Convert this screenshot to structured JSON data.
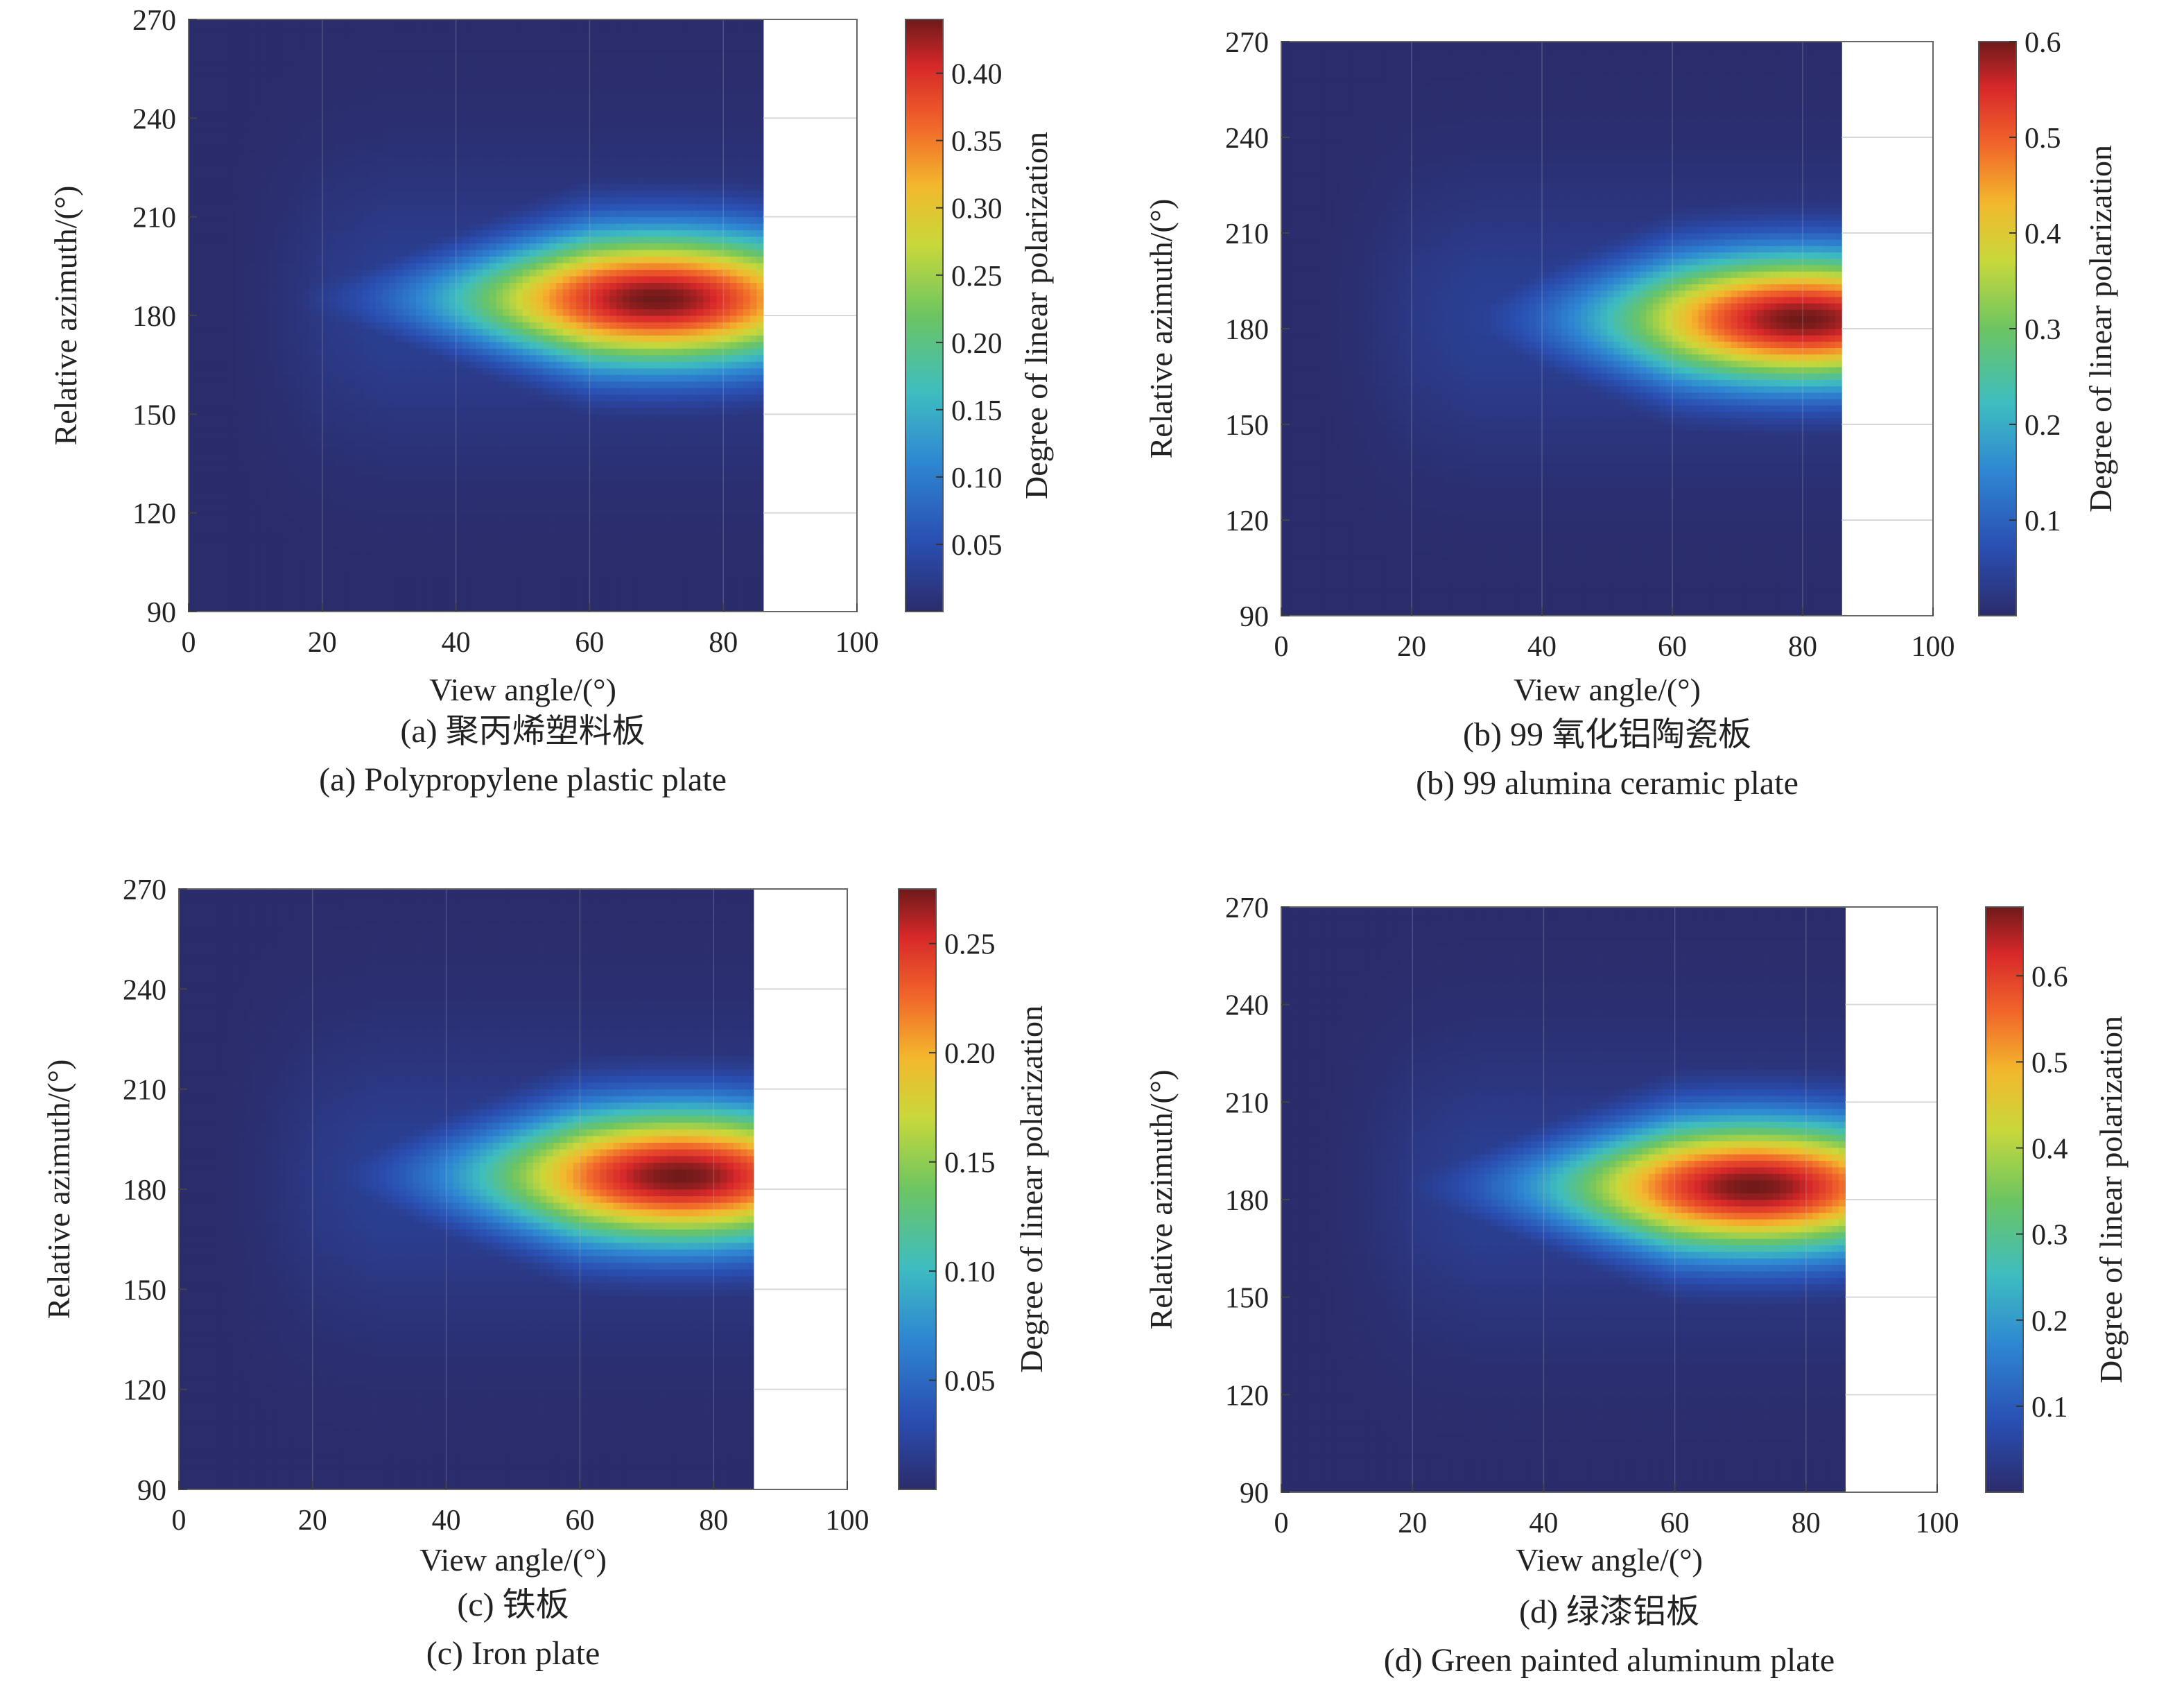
{
  "charts": [
    {
      "type": "heatmap",
      "xlabel": "View angle/(°)",
      "ylabel": "Relative azimuth/(°)",
      "colorbar_label": "Degree of linear polarization",
      "xlim": [
        0,
        100
      ],
      "ylim": [
        90,
        270
      ],
      "x_ticks": [
        "0",
        "20",
        "40",
        "60",
        "80",
        "100"
      ],
      "y_ticks": [
        "90",
        "120",
        "150",
        "180",
        "210",
        "240",
        "270"
      ],
      "data_x_range": [
        0,
        86
      ],
      "colorbar_range": [
        0,
        0.44
      ],
      "colorbar_ticks": [
        "0.05",
        "0.10",
        "0.15",
        "0.20",
        "0.25",
        "0.30",
        "0.35",
        "0.40"
      ],
      "colorbar_tick_values": [
        0.05,
        0.1,
        0.15,
        0.2,
        0.25,
        0.3,
        0.35,
        0.4
      ],
      "peak": {
        "view_angle": 70,
        "azimuth": 185,
        "value": 0.44
      },
      "caption_cn": "(a) 聚丙烯塑料板",
      "caption_en": "(a) Polypropylene plastic plate"
    },
    {
      "type": "heatmap",
      "xlabel": "View angle/(°)",
      "ylabel": "Relative azimuth/(°)",
      "colorbar_label": "Degree of linear polarization",
      "xlim": [
        0,
        100
      ],
      "ylim": [
        90,
        270
      ],
      "x_ticks": [
        "0",
        "20",
        "40",
        "60",
        "80",
        "100"
      ],
      "y_ticks": [
        "90",
        "120",
        "150",
        "180",
        "210",
        "240",
        "270"
      ],
      "data_x_range": [
        0,
        86
      ],
      "colorbar_range": [
        0,
        0.6
      ],
      "colorbar_ticks": [
        "0.1",
        "0.2",
        "0.3",
        "0.4",
        "0.5",
        "0.6"
      ],
      "colorbar_tick_values": [
        0.1,
        0.2,
        0.3,
        0.4,
        0.5,
        0.6
      ],
      "peak": {
        "view_angle": 80,
        "azimuth": 183,
        "value": 0.6
      },
      "caption_cn": "(b) 99 氧化铝陶瓷板",
      "caption_en": "(b) 99 alumina ceramic plate"
    },
    {
      "type": "heatmap",
      "xlabel": "View angle/(°)",
      "ylabel": "Relative azimuth/(°)",
      "colorbar_label": "Degree of linear polarization",
      "xlim": [
        0,
        100
      ],
      "ylim": [
        90,
        270
      ],
      "x_ticks": [
        "0",
        "20",
        "40",
        "60",
        "80",
        "100"
      ],
      "y_ticks": [
        "90",
        "120",
        "150",
        "180",
        "210",
        "240",
        "270"
      ],
      "data_x_range": [
        0,
        86
      ],
      "colorbar_range": [
        0,
        0.275
      ],
      "colorbar_ticks": [
        "0.05",
        "0.10",
        "0.15",
        "0.20",
        "0.25"
      ],
      "colorbar_tick_values": [
        0.05,
        0.1,
        0.15,
        0.2,
        0.25
      ],
      "peak": {
        "view_angle": 75,
        "azimuth": 184,
        "value": 0.275
      },
      "caption_cn": "(c) 铁板",
      "caption_en": "(c) Iron plate"
    },
    {
      "type": "heatmap",
      "xlabel": "View angle/(°)",
      "ylabel": "Relative azimuth/(°)",
      "colorbar_label": "Degree of linear polarization",
      "xlim": [
        0,
        100
      ],
      "ylim": [
        90,
        270
      ],
      "x_ticks": [
        "0",
        "20",
        "40",
        "60",
        "80",
        "100"
      ],
      "y_ticks": [
        "90",
        "120",
        "150",
        "180",
        "210",
        "240",
        "270"
      ],
      "data_x_range": [
        0,
        86
      ],
      "colorbar_range": [
        0,
        0.68
      ],
      "colorbar_ticks": [
        "0.1",
        "0.2",
        "0.3",
        "0.4",
        "0.5",
        "0.6"
      ],
      "colorbar_tick_values": [
        0.1,
        0.2,
        0.3,
        0.4,
        0.5,
        0.6
      ],
      "peak": {
        "view_angle": 72,
        "azimuth": 184,
        "value": 0.68
      },
      "caption_cn": "(d) 绿漆铝板",
      "caption_en": "(d) Green painted aluminum plate"
    }
  ],
  "colors": {
    "background_dark": "#222a5c",
    "colormap": "jet"
  }
}
